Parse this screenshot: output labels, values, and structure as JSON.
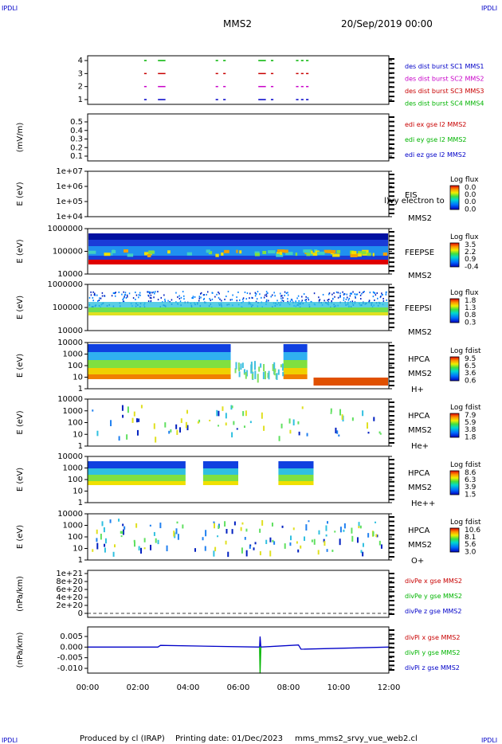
{
  "header": {
    "corner_label": "IPDLI",
    "spacecraft": "MMS2",
    "datetime": "20/Sep/2019 00:00"
  },
  "footer": {
    "produced_by": "Produced by cl (IRAP)",
    "printing_date": "Printing date: 01/Dec/2023",
    "filename": "mms_mms2_srvy_vue_web2.cl"
  },
  "x_axis": {
    "ticks": [
      "00:00",
      "02:00",
      "04:00",
      "06:00",
      "08:00",
      "10:00",
      "12:00"
    ],
    "range_hours": [
      0,
      12
    ]
  },
  "panels": [
    {
      "id": "burst",
      "ylabel": "",
      "ticks": [
        "4",
        "3",
        "2",
        "1"
      ],
      "legend": [
        {
          "text": "des dist burst SC1 MMS1",
          "color": "#0000c8"
        },
        {
          "text": "des dist burst SC2 MMS2",
          "color": "#c800c8"
        },
        {
          "text": "des dist burst SC3 MMS3",
          "color": "#c80000"
        },
        {
          "text": "des dist burst SC4 MMS4",
          "color": "#00b400"
        }
      ]
    },
    {
      "id": "edi",
      "ylabel": "(mV/m)",
      "ticks": [
        "0.5",
        "0.4",
        "0.3",
        "0.2",
        "0.1"
      ],
      "legend": [
        {
          "text": "edi ex gse l2 MMS2",
          "color": "#c80000"
        },
        {
          "text": "edi ey gse l2 MMS2",
          "color": "#00b400"
        },
        {
          "text": "edi ez gse l2 MMS2",
          "color": "#0000c8"
        }
      ]
    },
    {
      "id": "eis",
      "ylabel": "E (eV)",
      "ticks": [
        "1e+07",
        "1e+06",
        "1e+05",
        "1e+04"
      ],
      "instrument": [
        "EIS"
      ],
      "overlay_text": "l)vy electron to",
      "spacecraft": "MMS2",
      "colorbar": {
        "title": "Log flux",
        "ticks": [
          "0.0",
          "0.0",
          "0.0",
          "0.0"
        ]
      }
    },
    {
      "id": "feepse",
      "ylabel": "E (eV)",
      "ticks": [
        "1000000",
        "100000",
        "10000"
      ],
      "instrument": [
        "FEEPSE"
      ],
      "spacecraft": "MMS2",
      "colorbar": {
        "title": "Log flux",
        "ticks": [
          "3.5",
          "2.2",
          "0.9",
          "-0.4"
        ]
      }
    },
    {
      "id": "feepsi",
      "ylabel": "E (eV)",
      "ticks": [
        "1000000",
        "100000",
        "10000"
      ],
      "instrument": [
        "FEEPSI"
      ],
      "spacecraft": "MMS2",
      "colorbar": {
        "title": "Log flux",
        "ticks": [
          "1.8",
          "1.3",
          "0.8",
          "0.3"
        ]
      }
    },
    {
      "id": "hpca_h",
      "ylabel": "E (eV)",
      "ticks": [
        "10000",
        "1000",
        "100",
        "10",
        "1"
      ],
      "instrument": [
        "HPCA",
        "MMS2"
      ],
      "species": "H+",
      "colorbar": {
        "title": "Log fdist",
        "ticks": [
          "9.5",
          "6.5",
          "3.6",
          "0.6"
        ]
      }
    },
    {
      "id": "hpca_he",
      "ylabel": "E (eV)",
      "ticks": [
        "10000",
        "1000",
        "100",
        "10",
        "1"
      ],
      "instrument": [
        "HPCA",
        "MMS2"
      ],
      "species": "He+",
      "colorbar": {
        "title": "Log fdist",
        "ticks": [
          "7.9",
          "5.9",
          "3.8",
          "1.8"
        ]
      }
    },
    {
      "id": "hpca_hepp",
      "ylabel": "E (eV)",
      "ticks": [
        "10000",
        "1000",
        "100",
        "10",
        "1"
      ],
      "instrument": [
        "HPCA",
        "MMS2"
      ],
      "species": "He++",
      "colorbar": {
        "title": "Log fdist",
        "ticks": [
          "8.6",
          "6.3",
          "3.9",
          "1.5"
        ]
      }
    },
    {
      "id": "hpca_o",
      "ylabel": "E (eV)",
      "ticks": [
        "10000",
        "1000",
        "100",
        "10",
        "1"
      ],
      "instrument": [
        "HPCA",
        "MMS2"
      ],
      "species": "O+",
      "colorbar": {
        "title": "Log fdist",
        "ticks": [
          "10.6",
          "8.1",
          "5.6",
          "3.0"
        ]
      }
    },
    {
      "id": "divpe",
      "ylabel": "(nPa/km)",
      "ticks": [
        "1e+21",
        "8e+20",
        "6e+20",
        "4e+20",
        "2e+20",
        "0"
      ],
      "legend": [
        {
          "text": "divPe x gse MMS2",
          "color": "#c80000"
        },
        {
          "text": "divPe y gse MMS2",
          "color": "#00b400"
        },
        {
          "text": "divPe z gse MMS2",
          "color": "#0000c8"
        }
      ]
    },
    {
      "id": "divpi",
      "ylabel": "(nPa/km)",
      "ticks": [
        "0.005",
        "0.000",
        "-0.005",
        "-0.010"
      ],
      "legend": [
        {
          "text": "divPi x gse MMS2",
          "color": "#c80000"
        },
        {
          "text": "divPi y gse MMS2",
          "color": "#00b400"
        },
        {
          "text": "divPi z gse MMS2",
          "color": "#0000c8"
        }
      ]
    }
  ],
  "chart_data": [
    {
      "type": "scatter",
      "panel": "burst",
      "xlabel": "",
      "ylabel": "",
      "ylim": [
        0.5,
        4.5
      ],
      "series": [
        {
          "name": "des dist burst SC1 MMS1",
          "y": 1,
          "intervals_hours": [
            [
              2.25,
              2.35
            ],
            [
              2.8,
              3.1
            ],
            [
              5.1,
              5.2
            ],
            [
              5.4,
              5.5
            ],
            [
              6.8,
              7.1
            ],
            [
              7.3,
              7.4
            ],
            [
              8.3,
              8.4
            ],
            [
              8.5,
              8.6
            ],
            [
              8.7,
              8.8
            ]
          ]
        },
        {
          "name": "des dist burst SC2 MMS2",
          "y": 2,
          "intervals_hours": [
            [
              2.25,
              2.35
            ],
            [
              2.8,
              3.1
            ],
            [
              5.1,
              5.2
            ],
            [
              5.4,
              5.5
            ],
            [
              6.8,
              7.1
            ],
            [
              7.3,
              7.4
            ],
            [
              8.3,
              8.4
            ],
            [
              8.5,
              8.6
            ],
            [
              8.7,
              8.8
            ]
          ]
        },
        {
          "name": "des dist burst SC3 MMS3",
          "y": 3,
          "intervals_hours": [
            [
              2.25,
              2.35
            ],
            [
              2.8,
              3.1
            ],
            [
              5.1,
              5.2
            ],
            [
              5.4,
              5.5
            ],
            [
              6.8,
              7.1
            ],
            [
              7.3,
              7.4
            ],
            [
              8.3,
              8.4
            ],
            [
              8.5,
              8.6
            ],
            [
              8.7,
              8.8
            ]
          ]
        },
        {
          "name": "des dist burst SC4 MMS4",
          "y": 4,
          "intervals_hours": [
            [
              2.25,
              2.35
            ],
            [
              2.8,
              3.1
            ],
            [
              5.1,
              5.2
            ],
            [
              5.4,
              5.5
            ],
            [
              6.8,
              7.1
            ],
            [
              7.3,
              7.4
            ],
            [
              8.3,
              8.4
            ],
            [
              8.5,
              8.6
            ],
            [
              8.7,
              8.8
            ]
          ]
        }
      ]
    },
    {
      "type": "line",
      "panel": "edi",
      "ylabel": "(mV/m)",
      "ylim": [
        0.05,
        0.6
      ],
      "series": []
    },
    {
      "type": "heatmap",
      "panel": "feepse",
      "ylabel": "E (eV)",
      "ylim": [
        10000,
        1000000
      ],
      "scale": "log",
      "colorbar_range": [
        -0.4,
        3.5
      ]
    },
    {
      "type": "heatmap",
      "panel": "feepsi",
      "ylabel": "E (eV)",
      "ylim": [
        10000,
        1000000
      ],
      "scale": "log",
      "colorbar_range": [
        0.3,
        1.8
      ]
    },
    {
      "type": "heatmap",
      "panel": "hpca_h",
      "ylabel": "E (eV)",
      "ylim": [
        1,
        30000
      ],
      "scale": "log",
      "colorbar_range": [
        0.6,
        9.5
      ],
      "data_gaps_hours": [
        [
          5.7,
          7.8
        ],
        [
          8.75,
          9.0
        ]
      ]
    },
    {
      "type": "line",
      "panel": "divpe",
      "ylabel": "(nPa/km)",
      "ylim": [
        -5e+19,
        1.05e+21
      ],
      "series": [
        {
          "name": "divPe x gse MMS2",
          "x": [
            0,
            12
          ],
          "y": [
            0,
            0
          ]
        }
      ]
    },
    {
      "type": "line",
      "panel": "divpi",
      "ylabel": "(nPa/km)",
      "ylim": [
        -0.013,
        0.007
      ],
      "series": [
        {
          "name": "divPi z gse MMS2",
          "x": [
            0,
            2.8,
            2.9,
            6.85,
            6.87,
            6.9,
            8.4,
            8.5,
            12
          ],
          "y": [
            0,
            0,
            0.0008,
            0,
            0.005,
            0,
            0.001,
            -0.001,
            0
          ]
        },
        {
          "name": "divPi y gse MMS2",
          "x": [
            6.85,
            6.87,
            6.9
          ],
          "y": [
            0,
            -0.0125,
            0
          ]
        }
      ]
    }
  ]
}
